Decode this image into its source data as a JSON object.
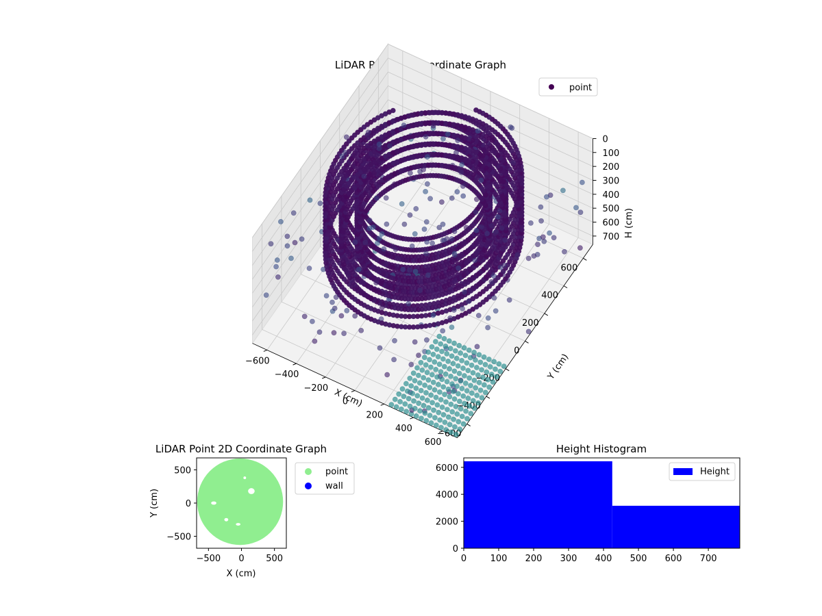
{
  "chart_data": [
    {
      "type": "scatter",
      "projection": "3d",
      "title": "LiDAR Point 3D Coordinate Graph",
      "xlabel": "X (cm)",
      "ylabel": "Y (cm)",
      "zlabel": "H (cm)",
      "xlim": [
        -700,
        700
      ],
      "ylim": [
        -700,
        700
      ],
      "zlim": [
        0,
        760
      ],
      "zaxis_inverted": true,
      "x_ticks": [
        "−600",
        "−400",
        "−200",
        "0",
        "200",
        "400",
        "600"
      ],
      "y_ticks": [
        "−600",
        "−400",
        "−200",
        "0",
        "200",
        "400",
        "600"
      ],
      "z_ticks": [
        "0",
        "100",
        "200",
        "300",
        "400",
        "500",
        "600",
        "700"
      ],
      "legend": {
        "placement": "upper-right",
        "entries": [
          "point"
        ]
      },
      "colormap": [
        "#440154",
        "#3b528b",
        "#21918c"
      ],
      "series": [
        {
          "name": "point",
          "shape": "ring",
          "center": [
            -20,
            40
          ],
          "radius_min": 380,
          "radius_max": 560,
          "height_range": [
            0,
            430
          ],
          "approx_points": 9600
        }
      ],
      "grid": true
    },
    {
      "type": "scatter",
      "title": "LiDAR Point 2D Coordinate Graph",
      "xlabel": "X (cm)",
      "ylabel": "Y (cm)",
      "xlim": [
        -680,
        680
      ],
      "ylim": [
        -680,
        680
      ],
      "x_ticks": [
        "−500",
        "0",
        "500"
      ],
      "y_ticks": [
        "−500",
        "0",
        "500"
      ],
      "legend": {
        "placement": "outside-right",
        "entries": [
          "point",
          "wall"
        ]
      },
      "series": [
        {
          "name": "point",
          "color": "#90ee90",
          "radius": 620,
          "center": [
            -20,
            20
          ]
        },
        {
          "name": "wall",
          "color": "#0000ff",
          "count": 0
        }
      ]
    },
    {
      "type": "bar",
      "title": "Height Histogram",
      "xlim": [
        0,
        790
      ],
      "ylim": [
        0,
        6700
      ],
      "x_ticks": [
        "0",
        "100",
        "200",
        "300",
        "400",
        "500",
        "600",
        "700"
      ],
      "y_ticks": [
        "0",
        "2000",
        "4000",
        "6000"
      ],
      "legend": {
        "placement": "upper-right",
        "entries": [
          "Height"
        ]
      },
      "series": [
        {
          "name": "Height",
          "color": "#0000ff",
          "bins": [
            {
              "x0": 0,
              "x1": 425,
              "count": 6450
            },
            {
              "x0": 425,
              "x1": 790,
              "count": 3150
            }
          ]
        }
      ]
    }
  ]
}
